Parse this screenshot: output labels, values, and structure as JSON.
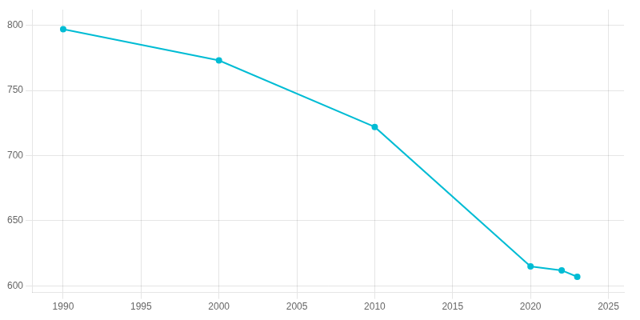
{
  "chart_data": {
    "type": "line",
    "x": [
      1990,
      2000,
      2010,
      2020,
      2022,
      2023
    ],
    "values": [
      797,
      773,
      722,
      615,
      612,
      607
    ],
    "color": "#00BCD4",
    "marker": "circle",
    "xlim": [
      1988,
      2026
    ],
    "ylim": [
      595,
      812
    ],
    "xticks": [
      1990,
      1995,
      2000,
      2005,
      2010,
      2015,
      2020,
      2025
    ],
    "yticks": [
      600,
      650,
      700,
      750,
      800
    ],
    "grid": true
  }
}
